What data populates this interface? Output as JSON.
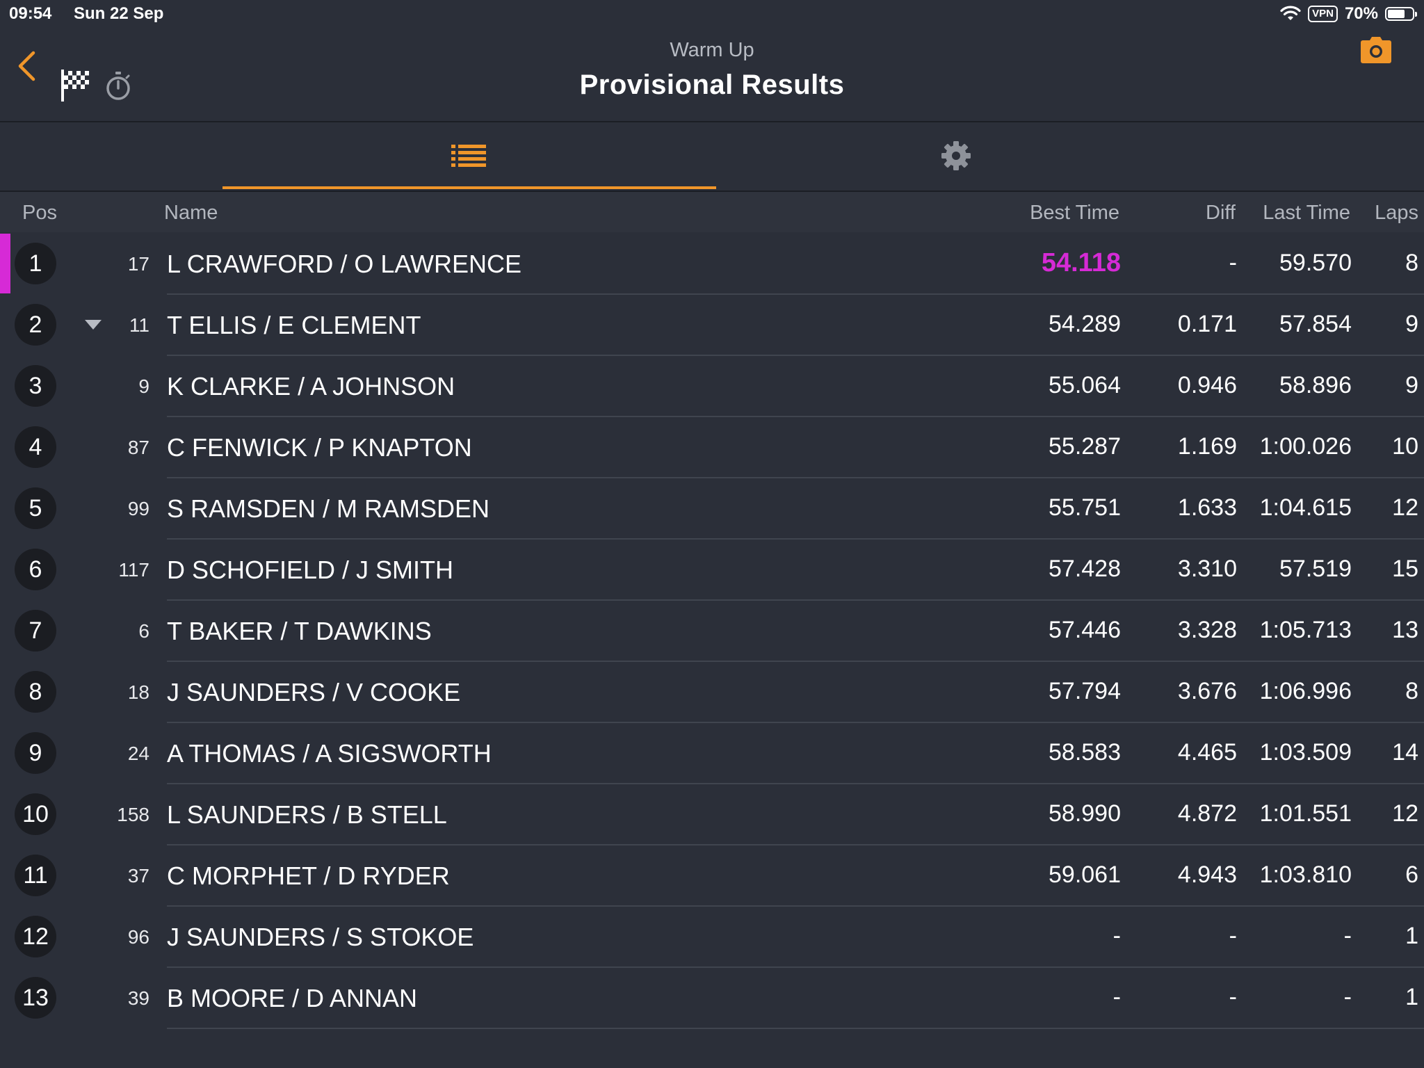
{
  "status_bar": {
    "time": "09:54",
    "date": "Sun 22 Sep",
    "vpn_label": "VPN",
    "battery_percent": "70%",
    "battery_level": 0.7
  },
  "header": {
    "subtitle": "Warm Up",
    "title": "Provisional Results",
    "icons": [
      "back-chevron-icon",
      "checkered-flag-icon",
      "stopwatch-icon",
      "camera-icon"
    ]
  },
  "tabs": [
    {
      "icon": "list-icon",
      "active": true
    },
    {
      "icon": "gear-icon",
      "active": false
    }
  ],
  "accent_color": "#f0962a",
  "fastest_color": "#d62ad6",
  "columns": {
    "pos": "Pos",
    "name": "Name",
    "best_time": "Best Time",
    "diff": "Diff",
    "last_time": "Last Time",
    "laps": "Laps"
  },
  "results": [
    {
      "pos": "1",
      "num": "17",
      "name": "L CRAWFORD / O LAWRENCE",
      "best": "54.118",
      "diff": "-",
      "last": "59.570",
      "laps": "8",
      "fastest": true,
      "trend": "none"
    },
    {
      "pos": "2",
      "num": "11",
      "name": "T ELLIS / E CLEMENT",
      "best": "54.289",
      "diff": "0.171",
      "last": "57.854",
      "laps": "9",
      "fastest": false,
      "trend": "down"
    },
    {
      "pos": "3",
      "num": "9",
      "name": "K CLARKE / A JOHNSON",
      "best": "55.064",
      "diff": "0.946",
      "last": "58.896",
      "laps": "9",
      "fastest": false,
      "trend": "none"
    },
    {
      "pos": "4",
      "num": "87",
      "name": "C FENWICK / P KNAPTON",
      "best": "55.287",
      "diff": "1.169",
      "last": "1:00.026",
      "laps": "10",
      "fastest": false,
      "trend": "none"
    },
    {
      "pos": "5",
      "num": "99",
      "name": "S RAMSDEN / M RAMSDEN",
      "best": "55.751",
      "diff": "1.633",
      "last": "1:04.615",
      "laps": "12",
      "fastest": false,
      "trend": "none"
    },
    {
      "pos": "6",
      "num": "117",
      "name": "D SCHOFIELD / J SMITH",
      "best": "57.428",
      "diff": "3.310",
      "last": "57.519",
      "laps": "15",
      "fastest": false,
      "trend": "none"
    },
    {
      "pos": "7",
      "num": "6",
      "name": "T BAKER / T DAWKINS",
      "best": "57.446",
      "diff": "3.328",
      "last": "1:05.713",
      "laps": "13",
      "fastest": false,
      "trend": "none"
    },
    {
      "pos": "8",
      "num": "18",
      "name": "J SAUNDERS / V COOKE",
      "best": "57.794",
      "diff": "3.676",
      "last": "1:06.996",
      "laps": "8",
      "fastest": false,
      "trend": "none"
    },
    {
      "pos": "9",
      "num": "24",
      "name": "A THOMAS / A SIGSWORTH",
      "best": "58.583",
      "diff": "4.465",
      "last": "1:03.509",
      "laps": "14",
      "fastest": false,
      "trend": "none"
    },
    {
      "pos": "10",
      "num": "158",
      "name": "L SAUNDERS / B STELL",
      "best": "58.990",
      "diff": "4.872",
      "last": "1:01.551",
      "laps": "12",
      "fastest": false,
      "trend": "none"
    },
    {
      "pos": "11",
      "num": "37",
      "name": "C MORPHET / D RYDER",
      "best": "59.061",
      "diff": "4.943",
      "last": "1:03.810",
      "laps": "6",
      "fastest": false,
      "trend": "none"
    },
    {
      "pos": "12",
      "num": "96",
      "name": "J SAUNDERS / S STOKOE",
      "best": "-",
      "diff": "-",
      "last": "-",
      "laps": "1",
      "fastest": false,
      "trend": "none"
    },
    {
      "pos": "13",
      "num": "39",
      "name": "B MOORE / D ANNAN",
      "best": "-",
      "diff": "-",
      "last": "-",
      "laps": "1",
      "fastest": false,
      "trend": "none"
    }
  ]
}
